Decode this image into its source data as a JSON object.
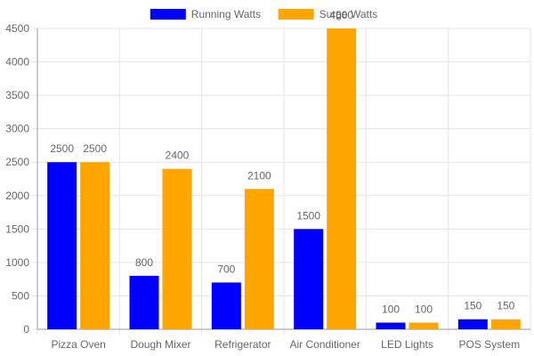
{
  "chart_data": {
    "type": "bar",
    "categories": [
      "Pizza Oven",
      "Dough Mixer",
      "Refrigerator",
      "Air Conditioner",
      "LED Lights",
      "POS System"
    ],
    "series": [
      {
        "name": "Running Watts",
        "values": [
          2500,
          800,
          700,
          1500,
          100,
          150
        ],
        "color": "#0000ff"
      },
      {
        "name": "Surge Watts",
        "values": [
          2500,
          2400,
          2100,
          4500,
          100,
          150
        ],
        "color": "#ffa500"
      }
    ],
    "title": "",
    "xlabel": "",
    "ylabel": "",
    "ylim": [
      0,
      4500
    ],
    "yticks": [
      0,
      500,
      1000,
      1500,
      2000,
      2500,
      3000,
      3500,
      4000,
      4500
    ],
    "grid": true,
    "legend": "top-center",
    "data_labels": true,
    "colors": {
      "grid": "#e5e5e5",
      "axis": "#999999",
      "text": "#666666"
    }
  }
}
